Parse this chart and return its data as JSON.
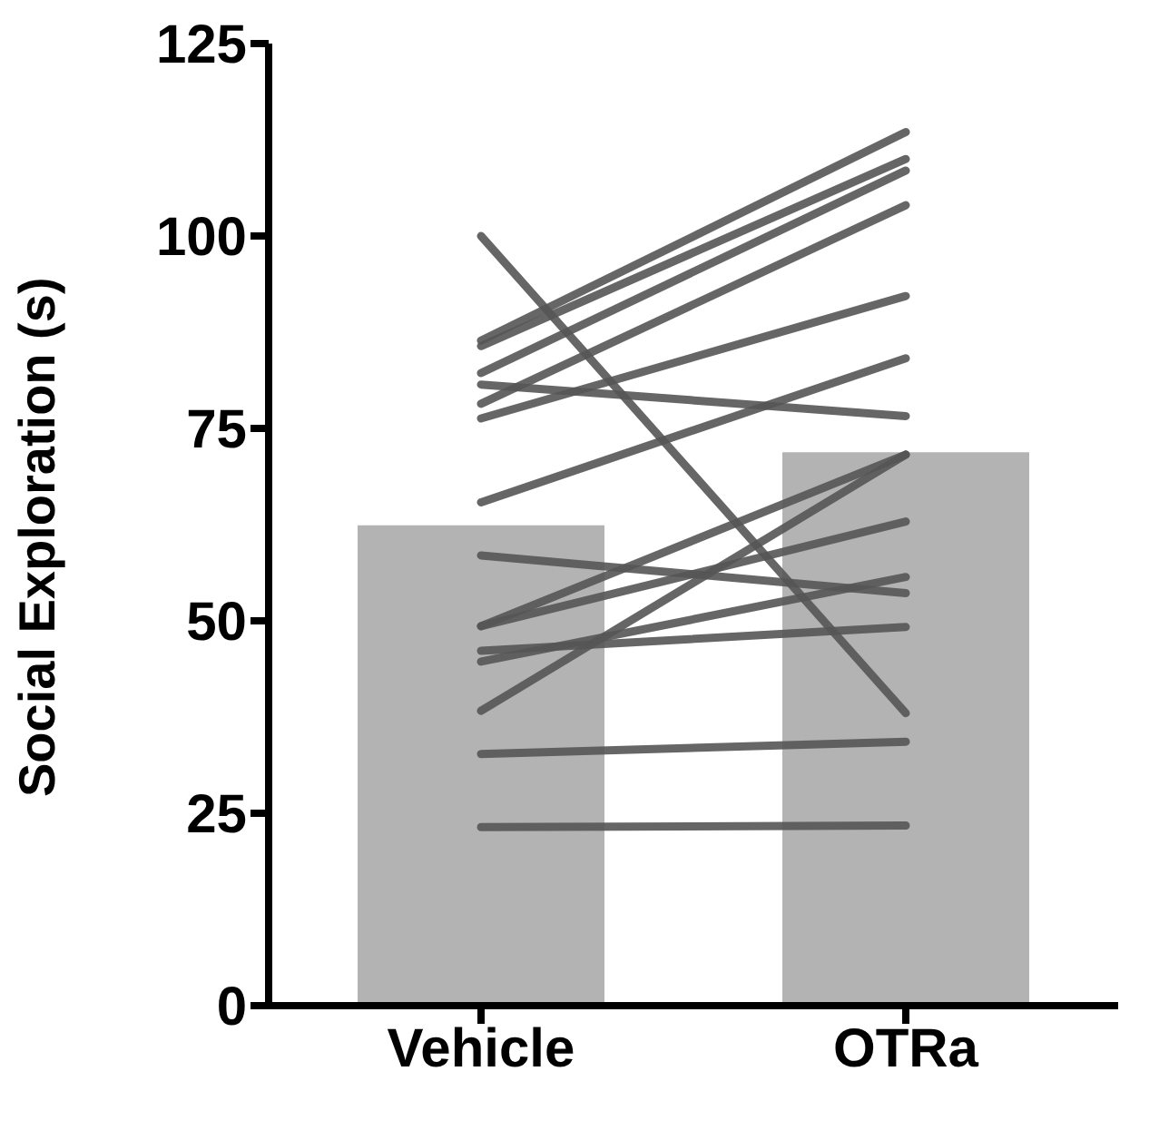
{
  "chart_data": {
    "type": "bar",
    "ylabel": "Social Exploration (s)",
    "categories": [
      "Vehicle",
      "OTRa"
    ],
    "ylim": [
      0,
      125
    ],
    "yticks": [
      0,
      25,
      50,
      75,
      100,
      125
    ],
    "grid": false,
    "legend": false,
    "marker": "none",
    "line_style": "solid",
    "series": [
      {
        "color": "#b3b3b3",
        "values": [
          62.4,
          71.9
        ]
      },
      {
        "type": "line",
        "color": "#555555",
        "values": [
          100,
          38
        ]
      },
      {
        "type": "line",
        "color": "#555555",
        "values": [
          86.4,
          113.5
        ]
      },
      {
        "type": "line",
        "color": "#555555",
        "values": [
          85.7,
          110
        ]
      },
      {
        "type": "line",
        "color": "#555555",
        "values": [
          82.2,
          108.5
        ]
      },
      {
        "type": "line",
        "color": "#555555",
        "values": [
          80.7,
          76.6
        ]
      },
      {
        "type": "line",
        "color": "#555555",
        "values": [
          78.2,
          104
        ]
      },
      {
        "type": "line",
        "color": "#555555",
        "values": [
          76.3,
          92.2
        ]
      },
      {
        "type": "line",
        "color": "#555555",
        "values": [
          65.4,
          84.1
        ]
      },
      {
        "type": "line",
        "color": "#555555",
        "values": [
          58.5,
          53.6
        ]
      },
      {
        "type": "line",
        "color": "#555555",
        "values": [
          49.3,
          71.6
        ]
      },
      {
        "type": "line",
        "color": "#555555",
        "values": [
          49.3,
          62.9
        ]
      },
      {
        "type": "line",
        "color": "#555555",
        "values": [
          46.1,
          49.2
        ]
      },
      {
        "type": "line",
        "color": "#555555",
        "values": [
          44.7,
          55.7
        ]
      },
      {
        "type": "line",
        "color": "#555555",
        "values": [
          38.3,
          71.6
        ]
      },
      {
        "type": "line",
        "color": "#555555",
        "values": [
          32.7,
          34.3
        ]
      },
      {
        "type": "line",
        "color": "#555555",
        "values": [
          23.2,
          23.4
        ]
      }
    ]
  }
}
